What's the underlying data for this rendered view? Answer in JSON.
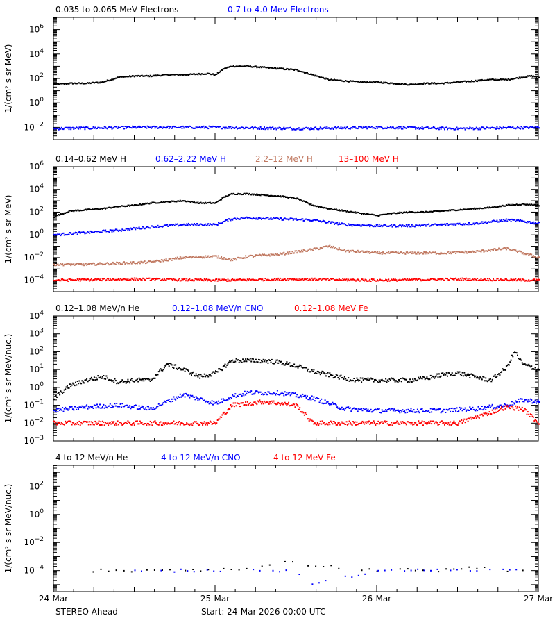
{
  "footer": {
    "spacecraft": "STEREO Ahead",
    "start": "Start: 24-Mar-2026 00:00 UTC"
  },
  "x_axis": {
    "tick_labels": [
      "24-Mar",
      "25-Mar",
      "26-Mar",
      "27-Mar"
    ],
    "range_days": [
      0,
      3
    ]
  },
  "colors": {
    "black": "#000000",
    "blue": "#0000ff",
    "tan": "#c07860",
    "red": "#ff0000"
  },
  "chart_data": [
    {
      "type": "scatter",
      "ylabel": "1/(cm² s sr MeV)",
      "scale": "log",
      "ylim_log10": [
        -3,
        7
      ],
      "y_ticks_log10": [
        -2,
        0,
        2,
        4,
        6
      ],
      "series": [
        {
          "name": "0.035 to 0.065 MeV Electrons",
          "color": "black",
          "x_days": [
            0,
            0.1,
            0.2,
            0.3,
            0.35,
            0.4,
            0.5,
            0.6,
            0.7,
            0.8,
            0.95,
            1.0,
            1.05,
            1.1,
            1.15,
            1.2,
            1.3,
            1.4,
            1.5,
            1.6,
            1.7,
            1.8,
            1.9,
            2.0,
            2.1,
            2.2,
            2.3,
            2.4,
            2.5,
            2.6,
            2.7,
            2.8,
            2.9,
            2.95,
            3.0
          ],
          "log10_y": [
            1.5,
            1.6,
            1.6,
            1.7,
            1.9,
            2.1,
            2.2,
            2.2,
            2.3,
            2.3,
            2.4,
            2.3,
            2.8,
            3.0,
            3.0,
            3.0,
            2.9,
            2.8,
            2.7,
            2.3,
            1.9,
            1.8,
            1.7,
            1.7,
            1.6,
            1.5,
            1.6,
            1.6,
            1.7,
            1.8,
            1.9,
            1.9,
            2.1,
            2.2,
            2.1
          ]
        },
        {
          "name": "0.7 to 4.0 Mev Electrons",
          "color": "blue",
          "x_days": [
            0,
            0.5,
            1.0,
            1.5,
            2.0,
            2.5,
            3.0
          ],
          "log10_y": [
            -2.1,
            -2.0,
            -2.0,
            -2.1,
            -2.0,
            -2.1,
            -2.0
          ]
        }
      ]
    },
    {
      "type": "scatter",
      "ylabel": "1/(cm² s sr MeV)",
      "scale": "log",
      "ylim_log10": [
        -5,
        6
      ],
      "y_ticks_log10": [
        -4,
        -2,
        0,
        2,
        4,
        6
      ],
      "series": [
        {
          "name": "0.14–0.62 MeV H",
          "color": "black",
          "x_days": [
            0,
            0.1,
            0.2,
            0.3,
            0.4,
            0.5,
            0.6,
            0.7,
            0.8,
            0.9,
            1.0,
            1.05,
            1.1,
            1.2,
            1.3,
            1.4,
            1.5,
            1.6,
            1.7,
            1.8,
            1.9,
            2.0,
            2.1,
            2.2,
            2.3,
            2.4,
            2.5,
            2.6,
            2.7,
            2.8,
            2.9,
            3.0
          ],
          "log10_y": [
            1.6,
            2.1,
            2.2,
            2.3,
            2.5,
            2.6,
            2.8,
            2.9,
            3.0,
            2.8,
            2.8,
            3.3,
            3.6,
            3.6,
            3.5,
            3.4,
            3.2,
            2.6,
            2.3,
            2.1,
            1.9,
            1.7,
            1.9,
            2.0,
            2.0,
            2.1,
            2.2,
            2.3,
            2.4,
            2.6,
            2.7,
            2.6
          ]
        },
        {
          "name": "0.62–2.22 MeV H",
          "color": "blue",
          "x_days": [
            0,
            0.2,
            0.4,
            0.6,
            0.8,
            1.0,
            1.1,
            1.2,
            1.4,
            1.6,
            1.8,
            2.0,
            2.2,
            2.4,
            2.6,
            2.8,
            2.9,
            3.0
          ],
          "log10_y": [
            0.0,
            0.2,
            0.4,
            0.7,
            0.9,
            0.9,
            1.4,
            1.5,
            1.4,
            1.3,
            0.9,
            0.8,
            0.8,
            0.9,
            1.0,
            1.3,
            1.2,
            1.0
          ]
        },
        {
          "name": "2.2–12 MeV H",
          "color": "tan",
          "x_days": [
            0,
            0.2,
            0.4,
            0.6,
            0.8,
            1.0,
            1.1,
            1.2,
            1.4,
            1.6,
            1.7,
            1.8,
            2.0,
            2.2,
            2.4,
            2.6,
            2.8,
            2.9,
            3.0
          ],
          "log10_y": [
            -2.6,
            -2.6,
            -2.5,
            -2.4,
            -2.0,
            -1.9,
            -2.2,
            -1.9,
            -1.7,
            -1.3,
            -1.0,
            -1.4,
            -1.6,
            -1.6,
            -1.6,
            -1.5,
            -1.2,
            -1.6,
            -2.0
          ]
        },
        {
          "name": "13–100 MeV H",
          "color": "red",
          "x_days": [
            0,
            0.5,
            1.0,
            1.5,
            2.0,
            2.5,
            3.0
          ],
          "log10_y": [
            -4.0,
            -3.9,
            -4.0,
            -3.9,
            -4.0,
            -3.9,
            -4.0
          ]
        }
      ]
    },
    {
      "type": "scatter",
      "ylabel": "1/(cm² s sr MeV/nuc.)",
      "scale": "log",
      "ylim_log10": [
        -3,
        4
      ],
      "y_ticks_log10": [
        -3,
        -2,
        -1,
        0,
        1,
        2,
        3,
        4
      ],
      "series": [
        {
          "name": "0.12–1.08 MeV/n He",
          "color": "black",
          "x_days": [
            0,
            0.1,
            0.2,
            0.3,
            0.4,
            0.5,
            0.6,
            0.7,
            0.8,
            0.9,
            1.0,
            1.1,
            1.2,
            1.3,
            1.4,
            1.5,
            1.6,
            1.7,
            1.8,
            1.9,
            2.0,
            2.1,
            2.2,
            2.3,
            2.4,
            2.5,
            2.6,
            2.7,
            2.8,
            2.85,
            2.9,
            3.0
          ],
          "log10_y": [
            -0.6,
            0.1,
            0.4,
            0.6,
            0.3,
            0.4,
            0.4,
            1.3,
            1.0,
            0.6,
            0.8,
            1.5,
            1.5,
            1.5,
            1.4,
            1.2,
            0.9,
            0.7,
            0.5,
            0.4,
            0.4,
            0.4,
            0.4,
            0.5,
            0.7,
            0.8,
            0.6,
            0.4,
            1.1,
            2.0,
            1.3,
            1.0
          ]
        },
        {
          "name": "0.12–1.08 MeV/n CNO",
          "color": "blue",
          "x_days": [
            0,
            0.2,
            0.4,
            0.6,
            0.8,
            1.0,
            1.1,
            1.2,
            1.4,
            1.6,
            1.8,
            2.0,
            2.2,
            2.4,
            2.6,
            2.8,
            2.9,
            3.0
          ],
          "log10_y": [
            -1.3,
            -1.1,
            -1.0,
            -1.2,
            -0.4,
            -0.9,
            -0.5,
            -0.3,
            -0.3,
            -0.6,
            -1.2,
            -1.3,
            -1.3,
            -1.3,
            -1.2,
            -1.0,
            -0.7,
            -0.8
          ]
        },
        {
          "name": "0.12–1.08 MeV Fe",
          "color": "red",
          "x_days": [
            0,
            0.5,
            1.0,
            1.1,
            1.2,
            1.3,
            1.4,
            1.5,
            1.6,
            2.0,
            2.5,
            2.8,
            2.9,
            3.0
          ],
          "log10_y": [
            -2.0,
            -2.0,
            -2.0,
            -1.0,
            -0.9,
            -0.8,
            -0.9,
            -1.0,
            -2.0,
            -2.0,
            -2.0,
            -1.1,
            -1.2,
            -2.0
          ]
        }
      ]
    },
    {
      "type": "scatter",
      "ylabel": "1/(cm² s sr MeV/nuc.)",
      "scale": "log",
      "ylim_log10": [
        -5.5,
        3.5
      ],
      "y_ticks_log10": [
        -4,
        -2,
        0,
        2
      ],
      "series": [
        {
          "name": "4 to 12 MeV/n He",
          "color": "black",
          "x_days": [
            0.1,
            0.5,
            0.9,
            1.2,
            1.4,
            1.5,
            1.6,
            1.8,
            2.0,
            2.2,
            2.4,
            2.6,
            2.8,
            2.9
          ],
          "log10_y": [
            -4.0,
            -4.0,
            -4.0,
            -3.9,
            -3.4,
            -3.5,
            -3.6,
            -3.8,
            -4.0,
            -3.9,
            -4.0,
            -3.8,
            -4.0,
            -3.9
          ]
        },
        {
          "name": "4 to 12 MeV/n CNO",
          "color": "blue",
          "x_days": [
            0.5,
            1.5,
            1.6,
            2.0,
            2.5,
            2.9
          ],
          "log10_y": [
            -4.0,
            -4.0,
            -5.0,
            -4.0,
            -4.0,
            -4.0
          ]
        },
        {
          "name": "4 to 12 MeV Fe",
          "color": "red",
          "x_days": [],
          "log10_y": []
        }
      ]
    }
  ]
}
